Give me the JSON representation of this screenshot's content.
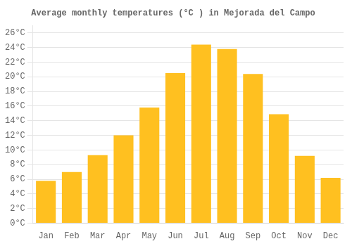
{
  "chart_data": {
    "type": "bar",
    "title": "Average monthly temperatures (°C ) in Mejorada del Campo",
    "categories": [
      "Jan",
      "Feb",
      "Mar",
      "Apr",
      "May",
      "Jun",
      "Jul",
      "Aug",
      "Sep",
      "Oct",
      "Nov",
      "Dec"
    ],
    "values": [
      5.8,
      7.0,
      9.3,
      12.0,
      15.8,
      20.5,
      24.4,
      23.8,
      20.4,
      14.9,
      9.2,
      6.2
    ],
    "color": "#FFC020",
    "ylim": [
      0,
      27
    ],
    "yticks": [
      {
        "value": 0,
        "label": "0°C"
      },
      {
        "value": 2,
        "label": "2°C"
      },
      {
        "value": 4,
        "label": "4°C"
      },
      {
        "value": 6,
        "label": "6°C"
      },
      {
        "value": 8,
        "label": "8°C"
      },
      {
        "value": 10,
        "label": "10°C"
      },
      {
        "value": 12,
        "label": "12°C"
      },
      {
        "value": 14,
        "label": "14°C"
      },
      {
        "value": 16,
        "label": "16°C"
      },
      {
        "value": 18,
        "label": "18°C"
      },
      {
        "value": 20,
        "label": "20°C"
      },
      {
        "value": 22,
        "label": "22°C"
      },
      {
        "value": 24,
        "label": "24°C"
      },
      {
        "value": 26,
        "label": "26°C"
      }
    ],
    "grid": true
  }
}
